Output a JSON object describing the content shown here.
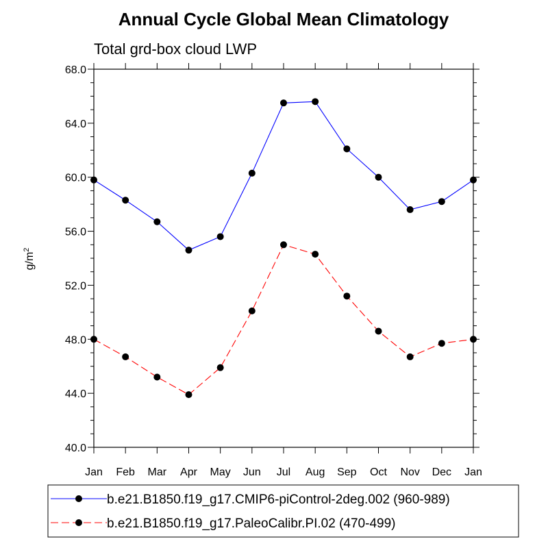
{
  "chart_data": {
    "type": "line",
    "title": "Annual Cycle Global Mean Climatology",
    "subtitle": "Total grd-box cloud LWP",
    "ylabel": "g/m",
    "ylabel_superscript": "2",
    "xlabel": "",
    "categories": [
      "Jan",
      "Feb",
      "Mar",
      "Apr",
      "May",
      "Jun",
      "Jul",
      "Aug",
      "Sep",
      "Oct",
      "Nov",
      "Dec",
      "Jan"
    ],
    "ylim": [
      40.0,
      68.0
    ],
    "yticks": [
      "40.0",
      "44.0",
      "48.0",
      "52.0",
      "56.0",
      "60.0",
      "64.0",
      "68.0"
    ],
    "ytick_values": [
      40,
      44,
      48,
      52,
      56,
      60,
      64,
      68
    ],
    "minor_y_step": 1,
    "grid": false,
    "legend_position": "bottom",
    "series": [
      {
        "name": "b.e21.B1850.f19_g17.CMIP6-piControl-2deg.002 (960-989)",
        "color": "#0000ff",
        "dash": "solid",
        "marker": "filled-circle",
        "values": [
          59.8,
          58.3,
          56.7,
          54.6,
          55.6,
          60.3,
          65.5,
          65.6,
          62.1,
          60.0,
          57.6,
          58.2,
          59.8
        ]
      },
      {
        "name": "b.e21.B1850.f19_g17.PaleoCalibr.PI.02 (470-499)",
        "color": "#ff0000",
        "dash": "dashed",
        "marker": "filled-circle",
        "values": [
          48.0,
          46.7,
          45.2,
          43.9,
          45.9,
          50.1,
          55.0,
          54.3,
          51.2,
          48.6,
          46.7,
          47.7,
          48.0
        ]
      }
    ]
  }
}
